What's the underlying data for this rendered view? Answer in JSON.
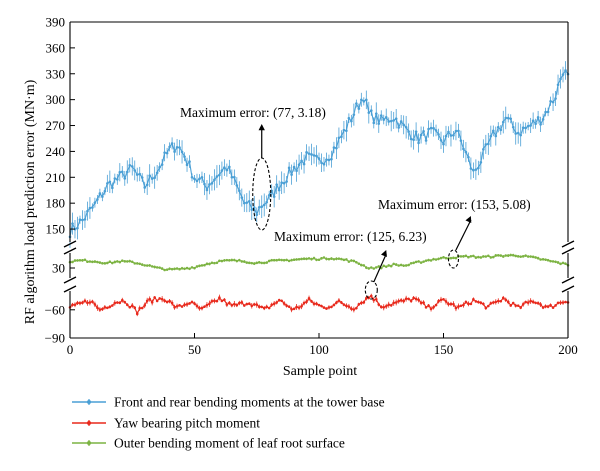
{
  "chart_data": {
    "type": "line",
    "xlabel": "Sample point",
    "ylabel": "RF algorithm load prediction error (MN·m)",
    "xlim": [
      0,
      200
    ],
    "x_ticks": [
      "0",
      "50",
      "100",
      "150",
      "200"
    ],
    "broken_y_axis": true,
    "y_segments": [
      {
        "range": [
          135,
          390
        ],
        "ticks": [
          "150",
          "180",
          "210",
          "240",
          "270",
          "300",
          "330",
          "360",
          "390"
        ]
      },
      {
        "range": [
          18,
          48
        ],
        "ticks": [
          "30"
        ]
      },
      {
        "range": [
          -90,
          -40
        ],
        "ticks": [
          "−60",
          "−90"
        ]
      }
    ],
    "grid": false,
    "legend_position": "bottom",
    "series": [
      {
        "name": "Front and rear bending moments at the tower base",
        "color": "#4a9fd5",
        "marker": "x",
        "error_bars": true,
        "keypoints": [
          [
            0,
            148
          ],
          [
            5,
            160
          ],
          [
            10,
            178
          ],
          [
            15,
            200
          ],
          [
            20,
            210
          ],
          [
            25,
            220
          ],
          [
            30,
            200
          ],
          [
            35,
            218
          ],
          [
            40,
            242
          ],
          [
            43,
            248
          ],
          [
            46,
            235
          ],
          [
            50,
            210
          ],
          [
            55,
            200
          ],
          [
            60,
            215
          ],
          [
            63,
            222
          ],
          [
            66,
            205
          ],
          [
            70,
            180
          ],
          [
            75,
            170
          ],
          [
            77,
            178
          ],
          [
            80,
            185
          ],
          [
            85,
            205
          ],
          [
            90,
            220
          ],
          [
            95,
            233
          ],
          [
            100,
            228
          ],
          [
            105,
            238
          ],
          [
            110,
            262
          ],
          [
            115,
            290
          ],
          [
            118,
            305
          ],
          [
            120,
            283
          ],
          [
            125,
            275
          ],
          [
            130,
            280
          ],
          [
            135,
            265
          ],
          [
            140,
            255
          ],
          [
            145,
            262
          ],
          [
            150,
            252
          ],
          [
            155,
            265
          ],
          [
            158,
            245
          ],
          [
            162,
            215
          ],
          [
            165,
            230
          ],
          [
            170,
            258
          ],
          [
            175,
            278
          ],
          [
            180,
            262
          ],
          [
            185,
            270
          ],
          [
            190,
            280
          ],
          [
            195,
            305
          ],
          [
            198,
            335
          ],
          [
            200,
            325
          ]
        ]
      },
      {
        "name": "Yaw bearing pitch moment",
        "color": "#e8291c",
        "marker": "+",
        "error_bars": true,
        "keypoints": [
          [
            0,
            -58
          ],
          [
            3,
            -55
          ],
          [
            8,
            -50
          ],
          [
            12,
            -60
          ],
          [
            18,
            -52
          ],
          [
            22,
            -50
          ],
          [
            27,
            -62
          ],
          [
            32,
            -50
          ],
          [
            38,
            -48
          ],
          [
            43,
            -58
          ],
          [
            48,
            -52
          ],
          [
            53,
            -60
          ],
          [
            60,
            -48
          ],
          [
            65,
            -56
          ],
          [
            72,
            -52
          ],
          [
            78,
            -60
          ],
          [
            84,
            -50
          ],
          [
            90,
            -60
          ],
          [
            96,
            -50
          ],
          [
            102,
            -58
          ],
          [
            108,
            -52
          ],
          [
            114,
            -58
          ],
          [
            118,
            -50
          ],
          [
            121,
            -45
          ],
          [
            125,
            -56
          ],
          [
            132,
            -52
          ],
          [
            138,
            -48
          ],
          [
            144,
            -58
          ],
          [
            150,
            -50
          ],
          [
            156,
            -58
          ],
          [
            162,
            -50
          ],
          [
            168,
            -57
          ],
          [
            174,
            -48
          ],
          [
            180,
            -58
          ],
          [
            186,
            -50
          ],
          [
            192,
            -58
          ],
          [
            197,
            -52
          ],
          [
            200,
            -50
          ]
        ]
      },
      {
        "name": "Outer bending moment of leaf root surface",
        "color": "#7cb342",
        "marker": "triangle",
        "error_bars": true,
        "keypoints": [
          [
            0,
            38
          ],
          [
            5,
            39
          ],
          [
            10,
            38
          ],
          [
            15,
            36
          ],
          [
            20,
            38
          ],
          [
            25,
            37
          ],
          [
            30,
            34
          ],
          [
            35,
            30
          ],
          [
            40,
            28
          ],
          [
            45,
            29
          ],
          [
            50,
            31
          ],
          [
            55,
            35
          ],
          [
            60,
            38
          ],
          [
            65,
            39
          ],
          [
            70,
            38
          ],
          [
            75,
            36
          ],
          [
            80,
            38
          ],
          [
            85,
            39
          ],
          [
            90,
            40
          ],
          [
            95,
            41
          ],
          [
            100,
            41
          ],
          [
            105,
            42
          ],
          [
            110,
            40
          ],
          [
            115,
            37
          ],
          [
            120,
            30
          ],
          [
            125,
            31
          ],
          [
            130,
            34
          ],
          [
            135,
            33
          ],
          [
            140,
            37
          ],
          [
            145,
            40
          ],
          [
            150,
            42
          ],
          [
            155,
            43
          ],
          [
            160,
            44
          ],
          [
            165,
            43
          ],
          [
            170,
            44
          ],
          [
            175,
            45
          ],
          [
            180,
            45
          ],
          [
            185,
            43
          ],
          [
            190,
            40
          ],
          [
            195,
            37
          ],
          [
            200,
            34
          ]
        ]
      }
    ],
    "annotations": [
      {
        "text": "Maximum error: (77, 3.18)",
        "x": 77,
        "y": 3.18
      },
      {
        "text": "Maximum error: (125, 6.23)",
        "x": 125,
        "y": 6.23
      },
      {
        "text": "Maximum error: (153, 5.08)",
        "x": 153,
        "y": 5.08
      }
    ]
  }
}
